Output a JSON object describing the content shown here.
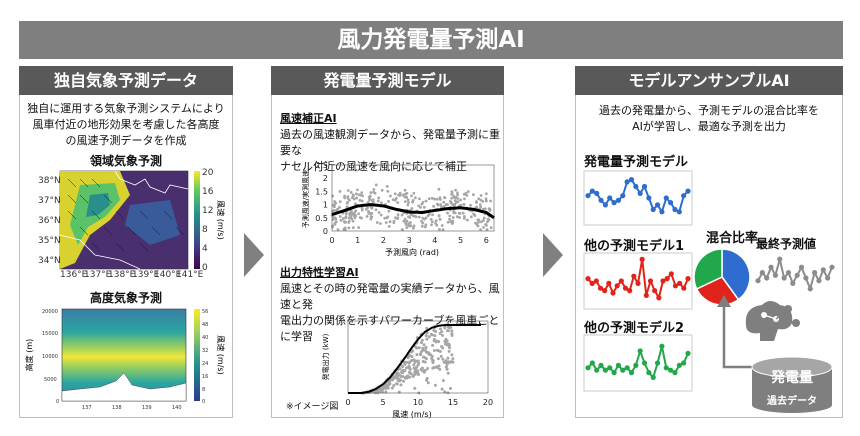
{
  "title": "風力発電量予測AI",
  "panel1": {
    "header": "独自気象予測データ",
    "desc_lines": [
      "独自に運用する気象予測システムにより",
      "風車付近の地形効果を考慮した各高度",
      "の風速予測データを作成"
    ],
    "map_title": "領域気象予測",
    "map_lat_ticks": [
      "38°N",
      "37°N",
      "36°N",
      "35°N",
      "34°N"
    ],
    "map_lon_ticks": [
      "136°E",
      "137°E",
      "138°E",
      "139°E",
      "140°E",
      "141°E"
    ],
    "map_cbar_ticks": [
      "20",
      "16",
      "12",
      "8",
      "4",
      "0"
    ],
    "map_cbar_label": "風速 (m/s)",
    "alt_title": "高度気象予測",
    "alt_ylabel": "高度 (m)",
    "alt_yticks": [
      "20000",
      "15000",
      "10000",
      "5000",
      "0"
    ],
    "alt_xticks": [
      "137",
      "138",
      "139",
      "140"
    ],
    "alt_cbar_ticks": [
      "56",
      "48",
      "40",
      "32",
      "24",
      "16",
      "8",
      "0"
    ],
    "alt_cbar_label": "風速 (m/s)"
  },
  "panel2": {
    "header": "発電量予測モデル",
    "sec1_title": "風速補正AI",
    "sec1_lines": [
      "過去の風速観測データから、発電量予測に重要な",
      "ナセル付近の風速を風向に応じて補正"
    ],
    "sec2_title": "出力特性学習AI",
    "sec2_lines": [
      "風速とその時の発電量の実績データから、風速と発",
      "電出力の関係を示すパワーカーブを風車ごとに学習"
    ],
    "note": "※イメージ図"
  },
  "panel3": {
    "header": "モデルアンサンブルAI",
    "desc_lines": [
      "過去の発電量から、予測モデルの混合比率を",
      "AIが学習し、最適な予測を出力"
    ],
    "model1": "発電量予測モデル",
    "model2": "他の予測モデル1",
    "model3": "他の予測モデル2",
    "mix_label": "混合比率",
    "final_label": "最終予測値",
    "db_label": "発電量",
    "db_sub": "過去データ"
  },
  "chart_data": [
    {
      "type": "scatter",
      "title": "風速補正AI",
      "xlabel": "予測風向 (rad)",
      "ylabel": "予測風速/実測風速",
      "xlim": [
        0,
        6.3
      ],
      "ylim": [
        0,
        2.5
      ],
      "xticks": [
        "0",
        "1",
        "2",
        "3",
        "4",
        "5",
        "6"
      ],
      "yticks": [
        "0",
        "0.5",
        "1",
        "1.5",
        "2",
        "2.5"
      ],
      "fit_x": [
        0,
        0.5,
        1.0,
        1.5,
        2.0,
        2.5,
        3.0,
        3.5,
        4.0,
        4.5,
        5.0,
        5.5,
        6.0,
        6.3
      ],
      "fit_y": [
        0.62,
        0.78,
        0.95,
        1.0,
        0.95,
        0.82,
        0.72,
        0.7,
        0.78,
        0.85,
        0.88,
        0.82,
        0.7,
        0.5
      ]
    },
    {
      "type": "scatter",
      "title": "出力特性学習AI",
      "xlabel": "風速 (m/s)",
      "ylabel": "発電出力 (kW)",
      "xlim": [
        0,
        20
      ],
      "xticks": [
        "0",
        "5",
        "10",
        "15",
        "20"
      ],
      "curve_x": [
        0,
        2,
        3,
        4,
        5,
        6,
        7,
        8,
        9,
        10,
        11,
        12,
        13,
        14,
        15,
        16,
        17,
        18,
        19
      ],
      "curve_y": [
        0,
        0,
        0.02,
        0.06,
        0.13,
        0.23,
        0.36,
        0.5,
        0.65,
        0.79,
        0.9,
        0.96,
        0.99,
        1.0,
        1.0,
        1.0,
        1.0,
        1.0,
        1.0
      ]
    },
    {
      "type": "line",
      "title": "発電量予測モデル",
      "values": [
        0.55,
        0.65,
        0.6,
        0.45,
        0.35,
        0.5,
        0.4,
        0.45,
        0.55,
        0.85,
        0.9,
        0.75,
        0.6,
        0.75,
        0.5,
        0.25,
        0.35,
        0.2,
        0.5,
        0.4,
        0.25,
        0.2,
        0.55,
        0.65
      ]
    },
    {
      "type": "line",
      "title": "他の予測モデル1",
      "values": [
        0.55,
        0.45,
        0.5,
        0.35,
        0.3,
        0.45,
        0.25,
        0.4,
        0.5,
        0.35,
        0.3,
        0.6,
        0.45,
        0.95,
        0.2,
        0.5,
        0.3,
        0.15,
        0.5,
        0.55,
        0.65,
        0.4,
        0.45,
        0.35,
        0.55
      ]
    },
    {
      "type": "line",
      "title": "他の予測モデル2",
      "values": [
        0.4,
        0.5,
        0.35,
        0.45,
        0.35,
        0.4,
        0.3,
        0.45,
        0.35,
        0.4,
        0.3,
        0.45,
        0.75,
        0.5,
        0.3,
        0.2,
        0.5,
        0.85,
        0.4,
        0.35,
        0.3,
        0.45,
        0.5,
        0.7
      ]
    },
    {
      "type": "pie",
      "title": "混合比率",
      "labels": [
        "発電量予測モデル",
        "他の予測モデル1",
        "他の予測モデル2"
      ],
      "values": [
        40,
        28,
        32
      ],
      "colors": [
        "#2e6ccf",
        "#e0241b",
        "#21a84a"
      ]
    },
    {
      "type": "line",
      "title": "最終予測値",
      "values": [
        0.45,
        0.6,
        0.5,
        0.7,
        0.55,
        0.85,
        0.5,
        0.6,
        0.4,
        0.55,
        0.7,
        0.5,
        0.3,
        0.6,
        0.45,
        0.65,
        0.5,
        0.7
      ]
    }
  ]
}
